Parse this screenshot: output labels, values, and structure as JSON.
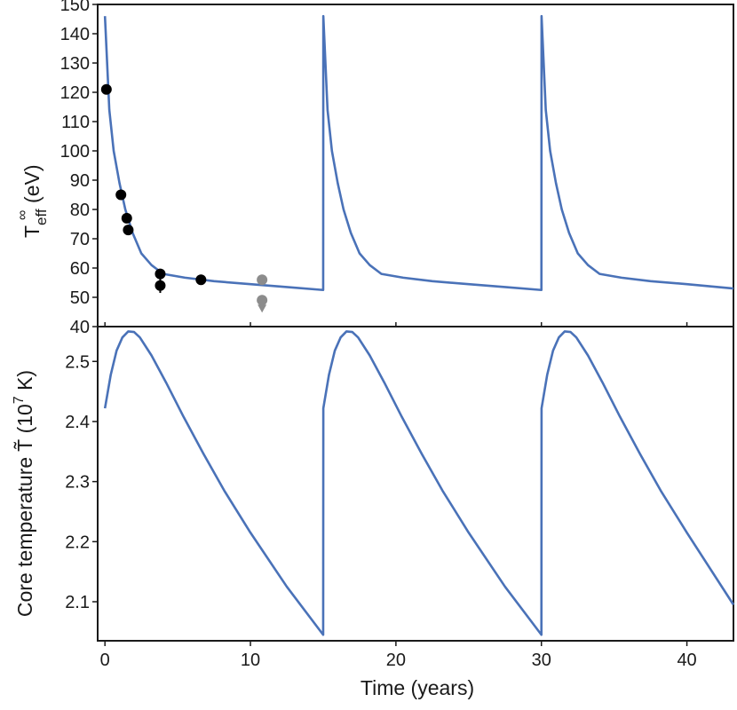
{
  "chart_data": [
    {
      "type": "line",
      "panel": "top",
      "ylabel": "T",
      "ylabel_super": "∞",
      "ylabel_sub": "eff",
      "ylabel_unit": " (eV)",
      "xlim": [
        -0.5,
        43.2
      ],
      "ylim": [
        40,
        150
      ],
      "yticks": [
        40,
        50,
        60,
        70,
        80,
        90,
        100,
        110,
        120,
        130,
        140,
        150
      ],
      "xticks": [
        0,
        10,
        20,
        30,
        40
      ],
      "line_color": "#4a72b8",
      "series": [
        {
          "name": "model",
          "x": [
            0.0,
            0.3,
            0.6,
            1.0,
            1.4,
            1.9,
            2.5,
            3.2,
            4.0,
            5.5,
            7.5,
            10.0,
            12.5,
            15.0,
            15.01,
            15.3,
            15.6,
            16.0,
            16.4,
            16.9,
            17.5,
            18.2,
            19.0,
            20.5,
            22.5,
            25.0,
            27.5,
            30.0,
            30.01,
            30.3,
            30.6,
            31.0,
            31.4,
            31.9,
            32.5,
            33.2,
            34.0,
            35.5,
            37.5,
            40.0,
            43.2
          ],
          "y": [
            146,
            114,
            100,
            89,
            80,
            72,
            65,
            61,
            58,
            56.7,
            55.5,
            54.5,
            53.5,
            52.5,
            146,
            114,
            100,
            89,
            80,
            72,
            65,
            61,
            58,
            56.7,
            55.5,
            54.5,
            53.5,
            52.5,
            146,
            114,
            100,
            89,
            80,
            72,
            65,
            61,
            58,
            56.7,
            55.5,
            54.5,
            53.0
          ]
        }
      ],
      "observations": [
        {
          "x": 0.1,
          "y": 121,
          "err": 1.5,
          "color": "#000000"
        },
        {
          "x": 1.1,
          "y": 85,
          "err": 1.0,
          "color": "#000000"
        },
        {
          "x": 1.5,
          "y": 77,
          "err": 1.0,
          "color": "#000000"
        },
        {
          "x": 1.6,
          "y": 73,
          "err": 1.0,
          "color": "#000000"
        },
        {
          "x": 3.8,
          "y": 58,
          "err": 1.5,
          "color": "#000000"
        },
        {
          "x": 3.8,
          "y": 54,
          "err": 2.5,
          "color": "#000000"
        },
        {
          "x": 6.6,
          "y": 56,
          "err": 1.5,
          "color": "#000000"
        },
        {
          "x": 10.8,
          "y": 56,
          "err": 0,
          "color": "#8c8c8c"
        },
        {
          "x": 10.8,
          "y": 49,
          "err": 0,
          "color": "#8c8c8c",
          "upper_limit": true
        }
      ]
    },
    {
      "type": "line",
      "panel": "bottom",
      "ylabel": "Core temperature T̃ (10",
      "ylabel_super": "7",
      "ylabel_unit": " K)",
      "xlabel": "Time (years)",
      "xlim": [
        -0.5,
        43.2
      ],
      "ylim": [
        2.035,
        2.558
      ],
      "yticks": [
        2.1,
        2.2,
        2.3,
        2.4,
        2.5
      ],
      "ytick_labels": [
        "2.1",
        "2.2",
        "2.3",
        "2.4",
        "2.5"
      ],
      "xticks": [
        0,
        10,
        20,
        30,
        40
      ],
      "xtick_labels": [
        "0",
        "10",
        "20",
        "30",
        "40"
      ],
      "line_color": "#4a72b8",
      "series": [
        {
          "name": "core temperature",
          "x": [
            0.0,
            0.4,
            0.8,
            1.2,
            1.6,
            2.0,
            2.4,
            3.2,
            4.2,
            5.4,
            6.8,
            8.2,
            10.0,
            12.5,
            15.0,
            15.01,
            15.4,
            15.8,
            16.2,
            16.6,
            17.0,
            17.4,
            18.2,
            19.2,
            20.4,
            21.8,
            23.2,
            25.0,
            27.5,
            30.0,
            30.01,
            30.4,
            30.8,
            31.2,
            31.6,
            32.0,
            32.4,
            33.2,
            34.2,
            35.4,
            36.8,
            38.2,
            40.0,
            43.2
          ],
          "y": [
            2.422,
            2.478,
            2.518,
            2.54,
            2.55,
            2.549,
            2.54,
            2.51,
            2.465,
            2.408,
            2.345,
            2.285,
            2.215,
            2.125,
            2.045,
            2.422,
            2.478,
            2.518,
            2.54,
            2.55,
            2.549,
            2.54,
            2.51,
            2.465,
            2.408,
            2.345,
            2.285,
            2.215,
            2.125,
            2.045,
            2.422,
            2.478,
            2.518,
            2.54,
            2.55,
            2.549,
            2.54,
            2.51,
            2.465,
            2.408,
            2.345,
            2.285,
            2.215,
            2.095
          ]
        }
      ]
    }
  ],
  "top_tick_labels": [
    "40",
    "50",
    "60",
    "70",
    "80",
    "90",
    "100",
    "110",
    "120",
    "130",
    "140",
    "150"
  ]
}
